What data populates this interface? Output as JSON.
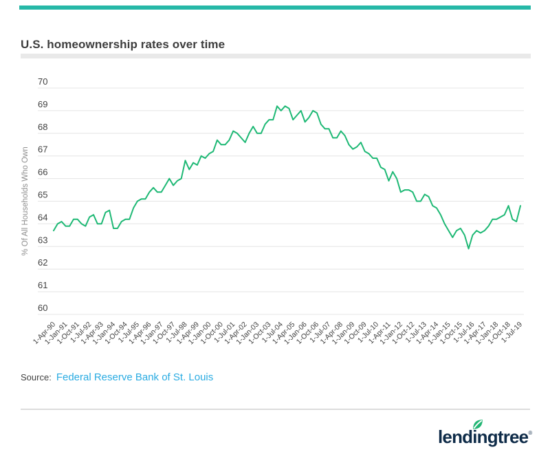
{
  "page": {
    "accent_bar_color": "#26b8a7",
    "background": "#ffffff"
  },
  "header": {
    "title": "U.S. homeownership rates over time"
  },
  "chart_data": {
    "type": "line",
    "title": "U.S. homeownership rates over time",
    "xlabel": "",
    "ylabel": "% Of All Households Who Own",
    "ylim": [
      60,
      70
    ],
    "y_ticks": [
      60,
      61,
      62,
      63,
      64,
      65,
      66,
      67,
      68,
      69,
      70
    ],
    "grid": "horizontal",
    "legend_position": "none",
    "line_color": "#1db874",
    "gridline_color": "#e4e4e4",
    "tick_label_color": "#3f3f3f",
    "axis_title_color": "#8f8f8f",
    "x_start": "1-Apr-90",
    "x_end": "1-Jul-19",
    "x_frequency": "quarterly",
    "x_tick_every_n_points": 3,
    "x_tick_labels": [
      "1-Apr-90",
      "1-Jan-91",
      "1-Oct-91",
      "1-Jul-92",
      "1-Apr-93",
      "1-Jan-94",
      "1-Oct-94",
      "1-Jul-95",
      "1-Apr-96",
      "1-Jan-97",
      "1-Oct-97",
      "1-Jul-98",
      "1-Apr-99",
      "1-Jan-00",
      "1-Oct-00",
      "1-Jul-01",
      "1-Apr-02",
      "1-Jan-03",
      "1-Oct-03",
      "1-Jul-04",
      "1-Apr-05",
      "1-Jan-06",
      "1-Oct-06",
      "1-Jul-07",
      "1-Apr-08",
      "1-Jan-09",
      "1-Oct-09",
      "1-Jul-10",
      "1-Apr-11",
      "1-Jan-12",
      "1-Oct-12",
      "1-Jul-13",
      "1-Apr-14",
      "1-Jan-15",
      "1-Oct-15",
      "1-Jul-16",
      "1-Apr-17",
      "1-Jan-18",
      "1-Oct-18",
      "1-Jul-19"
    ],
    "values": [
      63.7,
      64.0,
      64.1,
      63.9,
      63.9,
      64.2,
      64.2,
      64.0,
      63.9,
      64.3,
      64.4,
      64.0,
      64.0,
      64.5,
      64.6,
      63.8,
      63.8,
      64.1,
      64.2,
      64.2,
      64.7,
      65.0,
      65.1,
      65.1,
      65.4,
      65.6,
      65.4,
      65.4,
      65.7,
      66.0,
      65.7,
      65.9,
      66.0,
      66.8,
      66.4,
      66.7,
      66.6,
      67.0,
      66.9,
      67.1,
      67.2,
      67.7,
      67.5,
      67.5,
      67.7,
      68.1,
      68.0,
      67.8,
      67.6,
      68.0,
      68.3,
      68.0,
      68.0,
      68.4,
      68.6,
      68.6,
      69.2,
      69.0,
      69.2,
      69.1,
      68.6,
      68.8,
      69.0,
      68.5,
      68.7,
      69.0,
      68.9,
      68.4,
      68.2,
      68.2,
      67.8,
      67.8,
      68.1,
      67.9,
      67.5,
      67.3,
      67.4,
      67.6,
      67.2,
      67.1,
      66.9,
      66.9,
      66.5,
      66.4,
      65.9,
      66.3,
      66.0,
      65.4,
      65.5,
      65.5,
      65.4,
      65.0,
      65.0,
      65.3,
      65.2,
      64.8,
      64.7,
      64.4,
      64.0,
      63.7,
      63.4,
      63.7,
      63.8,
      63.5,
      62.9,
      63.5,
      63.7,
      63.6,
      63.7,
      63.9,
      64.2,
      64.2,
      64.3,
      64.4,
      64.8,
      64.2,
      64.1,
      64.8
    ]
  },
  "source": {
    "label": "Source:",
    "link_text": "Federal Reserve Bank of St. Louis",
    "link_color": "#29abe2"
  },
  "branding": {
    "logo_text": "lendingtree",
    "registered_mark": "®",
    "logo_color": "#0e2b48",
    "leaf_color": "#21b573",
    "leaf_icon": "leaf-icon"
  }
}
